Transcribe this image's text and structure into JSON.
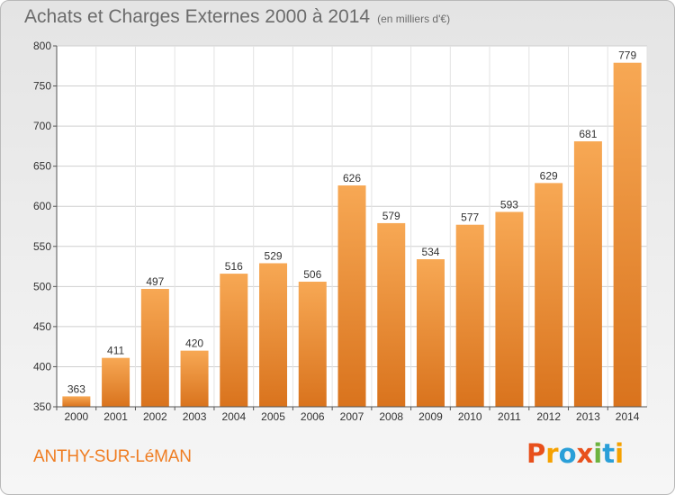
{
  "header": {
    "title": "Achats et Charges Externes 2000 à 2014",
    "unit": "(en milliers d'€)"
  },
  "footer": {
    "commune": "ANTHY-SUR-LéMAN",
    "logo": "Proxiti",
    "logo_colors": [
      "#e8501c",
      "#f5a100",
      "#2a9fd8",
      "#e8501c",
      "#6db33f",
      "#2a9fd8",
      "#f5a100"
    ]
  },
  "colors": {
    "bar_top": "#f7a854",
    "bar_bottom": "#d9731d",
    "grid": "#cfcfcf"
  },
  "chart_data": {
    "type": "bar",
    "title": "Achats et Charges Externes 2000 à 2014",
    "subtitle": "(en milliers d'€)",
    "categories": [
      "2000",
      "2001",
      "2002",
      "2003",
      "2004",
      "2005",
      "2006",
      "2007",
      "2008",
      "2009",
      "2010",
      "2011",
      "2012",
      "2013",
      "2014"
    ],
    "values": [
      363,
      411,
      497,
      420,
      516,
      529,
      506,
      626,
      579,
      534,
      577,
      593,
      629,
      681,
      779
    ],
    "ylim": [
      350,
      800
    ],
    "yticks": [
      350,
      400,
      450,
      500,
      550,
      600,
      650,
      700,
      750,
      800
    ],
    "grid": true,
    "data_labels": true
  }
}
